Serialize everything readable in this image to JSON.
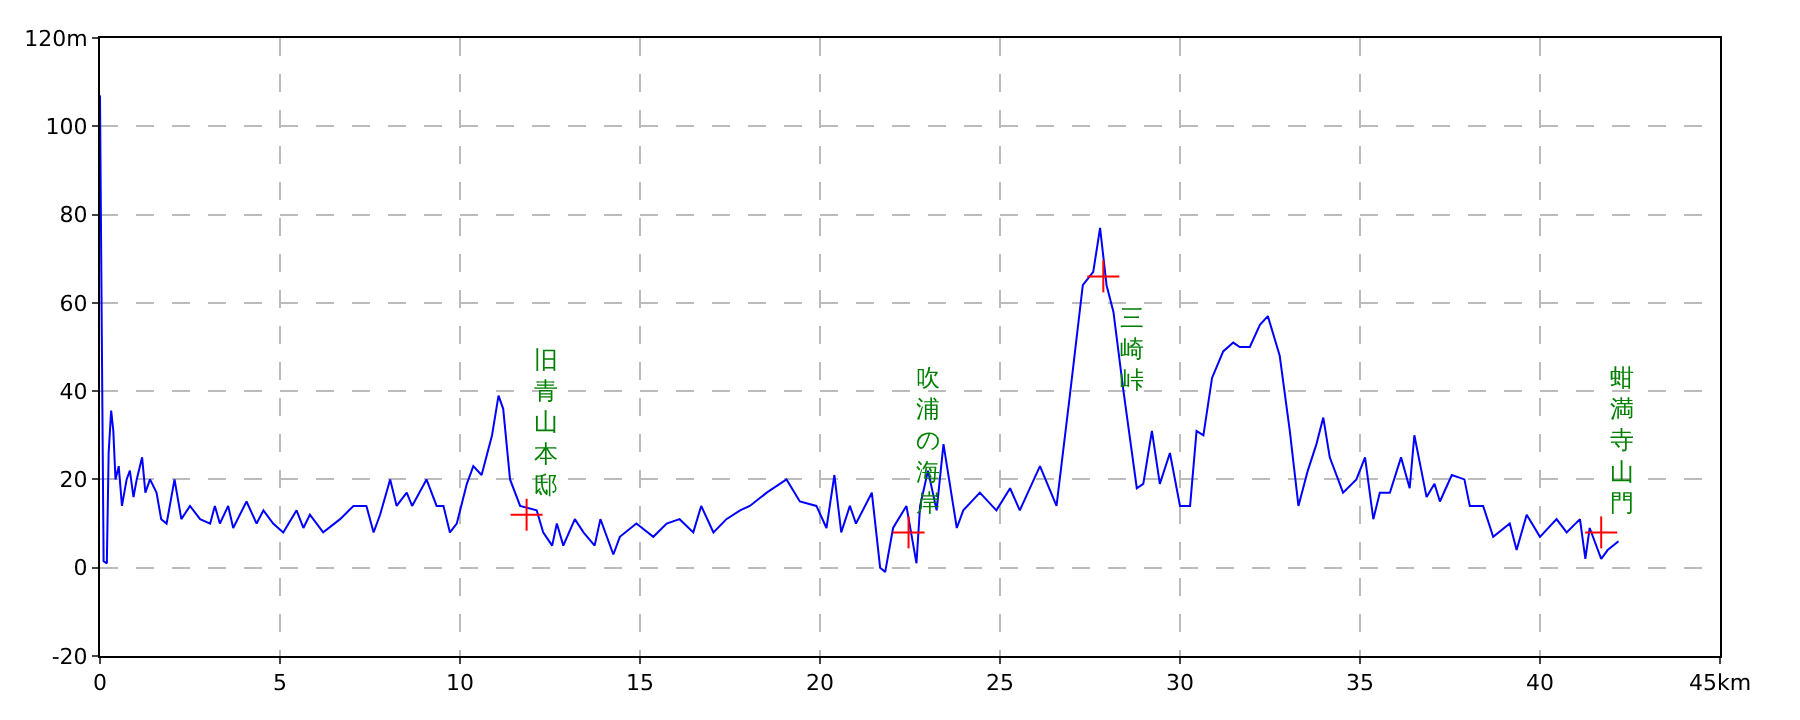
{
  "chart_data": {
    "type": "line",
    "x": [
      0,
      0.05,
      0.1,
      0.19,
      0.24,
      0.31,
      0.37,
      0.43,
      0.52,
      0.61,
      0.74,
      0.83,
      0.93,
      1.02,
      1.17,
      1.26,
      1.39,
      1.57,
      1.7,
      1.85,
      2.07,
      2.26,
      2.5,
      2.78,
      3.06,
      3.19,
      3.33,
      3.56,
      3.7,
      4.07,
      4.35,
      4.54,
      4.81,
      5.09,
      5.46,
      5.65,
      5.83,
      6.2,
      6.67,
      7.04,
      7.4,
      7.6,
      7.78,
      8.06,
      8.24,
      8.52,
      8.67,
      9.07,
      9.35,
      9.54,
      9.72,
      9.91,
      10.19,
      10.37,
      10.6,
      10.89,
      11.07,
      11.2,
      11.39,
      11.67,
      12.13,
      12.31,
      12.56,
      12.69,
      12.87,
      13.19,
      13.43,
      13.74,
      13.9,
      14.26,
      14.44,
      14.9,
      15.37,
      15.74,
      16.1,
      16.48,
      16.7,
      17.04,
      17.4,
      17.78,
      18.05,
      18.52,
      19.07,
      19.44,
      19.9,
      20.18,
      20.4,
      20.59,
      20.83,
      21.0,
      21.44,
      21.67,
      21.81,
      22.03,
      22.4,
      22.68,
      22.78,
      23.0,
      23.24,
      23.43,
      23.8,
      23.98,
      24.44,
      24.9,
      25.28,
      25.55,
      26.11,
      26.57,
      26.94,
      27.3,
      27.59,
      27.78,
      27.96,
      28.15,
      28.43,
      28.8,
      28.98,
      29.22,
      29.44,
      29.72,
      30.0,
      30.28,
      30.46,
      30.65,
      30.89,
      31.2,
      31.48,
      31.66,
      31.94,
      32.22,
      32.44,
      32.77,
      33.05,
      33.29,
      33.55,
      33.79,
      33.98,
      34.16,
      34.53,
      34.9,
      35.14,
      35.37,
      35.55,
      35.83,
      36.14,
      36.38,
      36.51,
      36.85,
      37.07,
      37.22,
      37.55,
      37.9,
      38.05,
      38.42,
      38.7,
      39.16,
      39.35,
      39.63,
      40.0,
      40.46,
      40.74,
      41.11,
      41.26,
      41.38,
      41.7,
      41.88,
      42.18
    ],
    "series": [
      {
        "color": "#0000ff",
        "values": [
          107,
          53,
          1.5,
          1,
          26,
          35.6,
          31,
          20,
          23,
          14,
          20,
          22,
          16,
          20,
          25,
          17,
          20,
          17,
          11,
          10,
          20,
          11,
          14,
          11,
          10,
          14,
          10,
          14,
          9,
          15,
          10,
          13,
          10,
          8,
          13,
          9,
          12,
          8,
          11,
          14,
          14,
          8,
          12,
          20,
          14,
          17,
          14,
          20,
          14,
          14,
          8,
          10,
          19,
          23,
          21,
          30,
          39,
          36,
          20,
          14,
          13,
          8,
          5,
          10,
          5,
          11,
          8,
          5,
          11,
          3,
          7,
          10,
          7,
          10,
          11,
          8,
          14,
          8,
          11,
          13,
          14,
          17,
          20,
          15,
          14,
          9,
          21,
          8,
          14,
          10,
          17,
          0,
          -1,
          9,
          14,
          1,
          14,
          22,
          13,
          28,
          9,
          13,
          17,
          13,
          18,
          13,
          23,
          14,
          39,
          64,
          67,
          77,
          64,
          58,
          40,
          18,
          19,
          31,
          19,
          26,
          14,
          14,
          31,
          30,
          43,
          49,
          51,
          50,
          50,
          55,
          57,
          48,
          31,
          14,
          22,
          28,
          34,
          25,
          17,
          20,
          25,
          11,
          17,
          17,
          25,
          18,
          30,
          16,
          19,
          15,
          21,
          20,
          14,
          14,
          7,
          10,
          4,
          12,
          7,
          11,
          8,
          11,
          2,
          9,
          2,
          4,
          6
        ]
      }
    ],
    "xlim": [
      0,
      45
    ],
    "ylim": [
      -20,
      120
    ],
    "xticks": [
      0,
      5,
      10,
      15,
      20,
      25,
      30,
      35,
      40,
      {
        "value": 45,
        "label": "45km"
      }
    ],
    "yticks": [
      -20,
      0,
      20,
      40,
      60,
      80,
      100,
      {
        "value": 120,
        "label": "120m"
      }
    ],
    "grid": true,
    "annotations": [
      {
        "text": "旧青山本邸",
        "x": 11.85,
        "y": 12
      },
      {
        "text": "吹浦の海岸",
        "x": 22.46,
        "y": 8
      },
      {
        "text": "三崎峠",
        "x": 27.87,
        "y": 66
      },
      {
        "text": "蚶満寺山門",
        "x": 41.7,
        "y": 8
      }
    ]
  }
}
